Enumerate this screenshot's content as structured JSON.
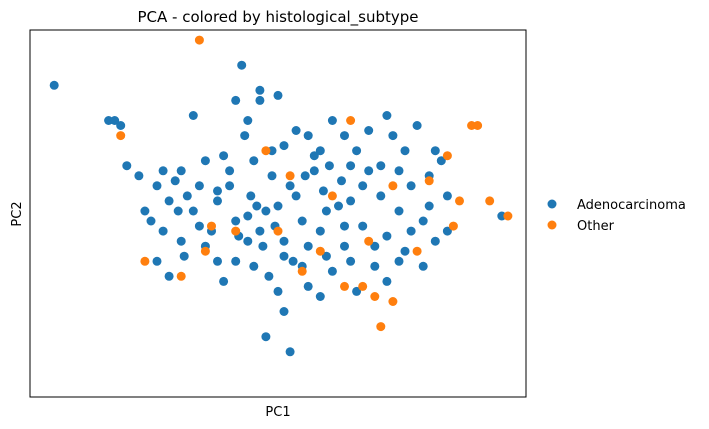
{
  "chart_data": {
    "type": "scatter",
    "title": "PCA - colored by histological_subtype",
    "xlabel": "PC1",
    "ylabel": "PC2",
    "xlim": [
      -4.4,
      3.8
    ],
    "ylim": [
      -3.6,
      3.7
    ],
    "x_ticks_visible": false,
    "y_ticks_visible": false,
    "grid": false,
    "legend_position": "right",
    "series": [
      {
        "name": "Adenocarcinoma",
        "color": "#1f77b4",
        "points": [
          [
            -4.0,
            2.6
          ],
          [
            -3.1,
            1.9
          ],
          [
            -3.0,
            1.9
          ],
          [
            -2.9,
            1.8
          ],
          [
            -2.8,
            1.0
          ],
          [
            -2.6,
            0.8
          ],
          [
            -2.5,
            0.1
          ],
          [
            -2.4,
            -0.1
          ],
          [
            -2.3,
            -0.9
          ],
          [
            -2.2,
            0.9
          ],
          [
            -2.1,
            0.3
          ],
          [
            -2.0,
            0.7
          ],
          [
            -1.95,
            0.1
          ],
          [
            -1.9,
            -0.5
          ],
          [
            -1.85,
            -0.8
          ],
          [
            -1.7,
            2.0
          ],
          [
            -1.6,
            0.6
          ],
          [
            -1.5,
            -0.6
          ],
          [
            -1.4,
            -0.3
          ],
          [
            -1.3,
            0.3
          ],
          [
            -1.2,
            -1.3
          ],
          [
            -1.1,
            0.9
          ],
          [
            -1.0,
            2.3
          ],
          [
            -0.95,
            -0.4
          ],
          [
            -0.9,
            3.0
          ],
          [
            -0.85,
            1.6
          ],
          [
            -0.8,
            1.9
          ],
          [
            -0.75,
            0.4
          ],
          [
            -0.7,
            -1.0
          ],
          [
            -0.65,
            0.2
          ],
          [
            -0.6,
            2.3
          ],
          [
            -0.55,
            -0.6
          ],
          [
            -0.5,
            0.1
          ],
          [
            -0.45,
            -1.2
          ],
          [
            -0.4,
            1.3
          ],
          [
            -0.35,
            -0.2
          ],
          [
            -0.3,
            2.4
          ],
          [
            -0.2,
            -0.5
          ],
          [
            -0.1,
            0.6
          ],
          [
            -0.05,
            -0.9
          ],
          [
            0.0,
            1.7
          ],
          [
            0.1,
            -0.1
          ],
          [
            0.15,
            0.8
          ],
          [
            0.2,
            -1.4
          ],
          [
            0.3,
            1.2
          ],
          [
            0.4,
            -0.3
          ],
          [
            0.45,
            0.5
          ],
          [
            0.5,
            -0.8
          ],
          [
            0.55,
            1.0
          ],
          [
            0.6,
            -1.1
          ],
          [
            0.7,
            0.2
          ],
          [
            0.75,
            0.7
          ],
          [
            0.8,
            -0.6
          ],
          [
            0.9,
            0.3
          ],
          [
            1.0,
            1.3
          ],
          [
            1.1,
            -0.2
          ],
          [
            1.2,
            0.9
          ],
          [
            1.3,
            -1.0
          ],
          [
            1.4,
            0.4
          ],
          [
            1.5,
            -0.4
          ],
          [
            1.6,
            1.6
          ],
          [
            1.7,
            0.1
          ],
          [
            1.8,
            -0.7
          ],
          [
            1.9,
            0.6
          ],
          [
            2.0,
            1.8
          ],
          [
            2.1,
            -0.1
          ],
          [
            2.2,
            0.8
          ],
          [
            2.3,
            -0.5
          ],
          [
            2.4,
            1.1
          ],
          [
            2.5,
            -0.3
          ],
          [
            1.5,
            2.0
          ],
          [
            1.2,
            1.7
          ],
          [
            0.6,
            1.9
          ],
          [
            -0.6,
            2.5
          ],
          [
            -1.2,
            1.2
          ],
          [
            -1.5,
            1.1
          ],
          [
            -0.2,
            1.4
          ],
          [
            0.2,
            1.6
          ],
          [
            0.9,
            1.0
          ],
          [
            -2.1,
            -1.2
          ],
          [
            -0.3,
            -1.5
          ],
          [
            0.4,
            -1.6
          ],
          [
            1.0,
            -1.5
          ],
          [
            -0.5,
            -2.4
          ],
          [
            -0.1,
            -2.7
          ],
          [
            -0.2,
            -1.9
          ],
          [
            -1.0,
            -0.9
          ],
          [
            -0.8,
            -0.5
          ],
          [
            0.1,
            -1.0
          ],
          [
            1.5,
            -1.3
          ],
          [
            2.1,
            -1.0
          ],
          [
            2.5,
            0.4
          ],
          [
            3.4,
            0.0
          ],
          [
            1.8,
            1.3
          ],
          [
            0.8,
            1.6
          ],
          [
            0.3,
            0.9
          ],
          [
            -0.4,
            0.8
          ],
          [
            -1.3,
            0.5
          ],
          [
            -1.7,
            0.1
          ],
          [
            -2.2,
            -0.3
          ],
          [
            -1.0,
            -0.1
          ],
          [
            -0.6,
            -0.3
          ],
          [
            0.0,
            0.4
          ],
          [
            0.5,
            0.1
          ],
          [
            1.1,
            0.6
          ],
          [
            1.7,
            0.9
          ],
          [
            2.2,
            0.2
          ],
          [
            -0.8,
            0.0
          ],
          [
            -1.6,
            -0.2
          ],
          [
            -1.1,
            0.6
          ],
          [
            -0.3,
            0.2
          ],
          [
            0.2,
            -0.6
          ],
          [
            0.8,
            -0.2
          ],
          [
            1.3,
            -0.6
          ],
          [
            1.9,
            -0.3
          ],
          [
            -1.8,
            0.4
          ],
          [
            -0.7,
            1.1
          ],
          [
            0.4,
            1.3
          ],
          [
            1.4,
            1.0
          ],
          [
            -0.2,
            -0.8
          ],
          [
            -1.3,
            -0.9
          ],
          [
            0.9,
            -0.9
          ],
          [
            1.7,
            -0.9
          ],
          [
            -2.3,
            0.6
          ],
          [
            -1.9,
            0.9
          ],
          [
            2.3,
            1.3
          ]
        ]
      },
      {
        "name": "Other",
        "color": "#ff7f0e",
        "points": [
          [
            -1.6,
            3.5
          ],
          [
            -2.9,
            1.6
          ],
          [
            -0.5,
            1.3
          ],
          [
            -0.1,
            0.8
          ],
          [
            0.6,
            0.4
          ],
          [
            0.9,
            1.9
          ],
          [
            1.6,
            0.6
          ],
          [
            2.5,
            1.2
          ],
          [
            2.7,
            0.3
          ],
          [
            2.6,
            -0.2
          ],
          [
            2.0,
            -0.7
          ],
          [
            1.2,
            -0.5
          ],
          [
            0.4,
            -0.7
          ],
          [
            -0.3,
            -0.3
          ],
          [
            -1.0,
            -0.3
          ],
          [
            -1.4,
            -0.2
          ],
          [
            -1.5,
            -0.7
          ],
          [
            -2.5,
            -0.9
          ],
          [
            -1.9,
            -1.2
          ],
          [
            0.1,
            -1.1
          ],
          [
            0.8,
            -1.4
          ],
          [
            1.1,
            -1.4
          ],
          [
            1.3,
            -1.6
          ],
          [
            1.6,
            -1.7
          ],
          [
            1.4,
            -2.2
          ],
          [
            2.2,
            0.7
          ],
          [
            3.2,
            0.3
          ],
          [
            3.5,
            0.0
          ],
          [
            2.9,
            1.8
          ],
          [
            3.0,
            1.8
          ]
        ]
      }
    ]
  }
}
